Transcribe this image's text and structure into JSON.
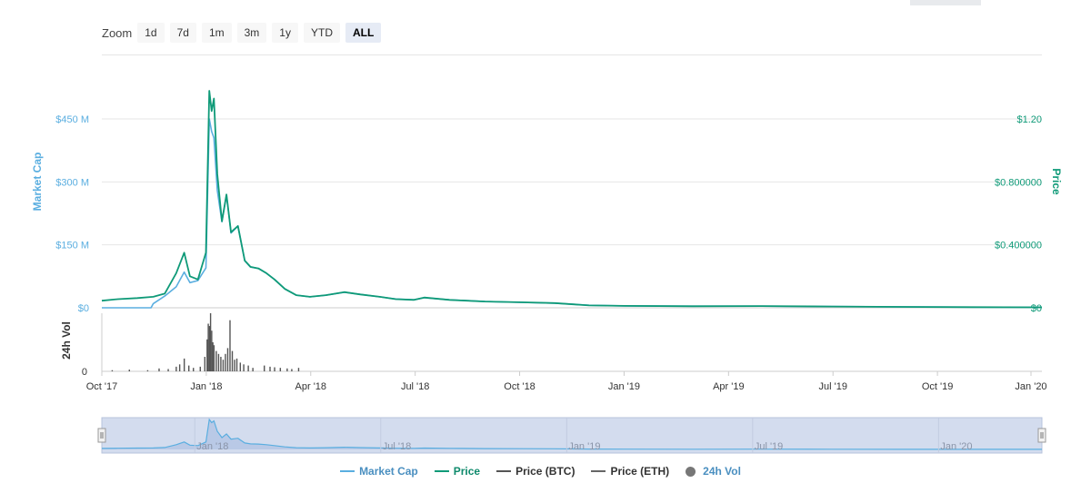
{
  "zoom": {
    "label": "Zoom",
    "buttons": [
      "1d",
      "7d",
      "1m",
      "3m",
      "1y",
      "YTD",
      "ALL"
    ],
    "active": "ALL"
  },
  "colors": {
    "market_cap": "#5aaee0",
    "price": "#0f9a78",
    "price_btc": "#555555",
    "price_eth": "#666666",
    "volume": "#555555",
    "navigator_fill": "#d3dcee",
    "navigator_line": "#5aaee0"
  },
  "legend": [
    {
      "name": "Market Cap",
      "color": "#5aaee0",
      "kind": "line"
    },
    {
      "name": "Price",
      "color": "#0f9a78",
      "kind": "line"
    },
    {
      "name": "Price (BTC)",
      "color": "#555555",
      "kind": "line"
    },
    {
      "name": "Price (ETH)",
      "color": "#666666",
      "kind": "line"
    },
    {
      "name": "24h Vol",
      "color": "#777777",
      "kind": "dot"
    }
  ],
  "chart_data": {
    "type": "line",
    "title": "",
    "x_ticks": [
      "Oct '17",
      "Jan '18",
      "Apr '18",
      "Jul '18",
      "Oct '18",
      "Jan '19",
      "Apr '19",
      "Jul '19",
      "Oct '19",
      "Jan '20"
    ],
    "x_range": [
      "2017-10-01",
      "2020-01-01"
    ],
    "left_axis": {
      "label": "Market Cap",
      "ticks": [
        "$0",
        "$150 M",
        "$300 M",
        "$450 M"
      ],
      "range": [
        0,
        450
      ]
    },
    "right_axis": {
      "label": "Price",
      "ticks": [
        "$0",
        "$0.400000",
        "$0.800000",
        "$1.20"
      ],
      "range": [
        0,
        1.2
      ]
    },
    "volume_axis": {
      "label": "24h Vol",
      "ticks": [
        "0"
      ]
    },
    "navigator_ticks": [
      "Jan '18",
      "Jul '18",
      "Jan '19",
      "Jul '19",
      "Jan '20"
    ],
    "series": [
      {
        "name": "Price",
        "unit": "USD",
        "points": [
          [
            "2017-10-01",
            0.045
          ],
          [
            "2017-10-15",
            0.055
          ],
          [
            "2017-11-01",
            0.062
          ],
          [
            "2017-11-15",
            0.07
          ],
          [
            "2017-11-25",
            0.09
          ],
          [
            "2017-12-05",
            0.22
          ],
          [
            "2017-12-12",
            0.35
          ],
          [
            "2017-12-17",
            0.2
          ],
          [
            "2017-12-24",
            0.18
          ],
          [
            "2017-12-31",
            0.35
          ],
          [
            "2018-01-03",
            1.4
          ],
          [
            "2018-01-05",
            1.25
          ],
          [
            "2018-01-07",
            1.33
          ],
          [
            "2018-01-10",
            0.85
          ],
          [
            "2018-01-14",
            0.55
          ],
          [
            "2018-01-18",
            0.72
          ],
          [
            "2018-01-22",
            0.48
          ],
          [
            "2018-01-28",
            0.52
          ],
          [
            "2018-02-03",
            0.3
          ],
          [
            "2018-02-08",
            0.26
          ],
          [
            "2018-02-15",
            0.25
          ],
          [
            "2018-02-22",
            0.22
          ],
          [
            "2018-03-01",
            0.18
          ],
          [
            "2018-03-10",
            0.12
          ],
          [
            "2018-03-20",
            0.08
          ],
          [
            "2018-04-01",
            0.07
          ],
          [
            "2018-04-15",
            0.08
          ],
          [
            "2018-05-01",
            0.1
          ],
          [
            "2018-05-15",
            0.085
          ],
          [
            "2018-06-01",
            0.07
          ],
          [
            "2018-06-15",
            0.055
          ],
          [
            "2018-07-01",
            0.05
          ],
          [
            "2018-07-10",
            0.065
          ],
          [
            "2018-08-01",
            0.05
          ],
          [
            "2018-09-01",
            0.04
          ],
          [
            "2018-10-01",
            0.035
          ],
          [
            "2018-11-01",
            0.03
          ],
          [
            "2018-12-01",
            0.015
          ],
          [
            "2019-01-01",
            0.012
          ],
          [
            "2019-03-01",
            0.01
          ],
          [
            "2019-05-01",
            0.011
          ],
          [
            "2019-07-01",
            0.008
          ],
          [
            "2019-09-01",
            0.006
          ],
          [
            "2019-11-01",
            0.004
          ],
          [
            "2020-01-01",
            0.003
          ]
        ]
      },
      {
        "name": "Market Cap",
        "unit": "USD millions",
        "points": [
          [
            "2017-10-01",
            0
          ],
          [
            "2017-11-13",
            0
          ],
          [
            "2017-11-15",
            10
          ],
          [
            "2017-11-25",
            28
          ],
          [
            "2017-12-05",
            50
          ],
          [
            "2017-12-12",
            85
          ],
          [
            "2017-12-17",
            60
          ],
          [
            "2017-12-24",
            65
          ],
          [
            "2017-12-31",
            95
          ],
          [
            "2018-01-03",
            450
          ],
          [
            "2018-01-05",
            420
          ],
          [
            "2018-01-07",
            405
          ],
          [
            "2018-01-10",
            280
          ],
          [
            "2018-01-14",
            205
          ],
          [
            "2018-01-18",
            268
          ],
          [
            "2018-01-22",
            178
          ],
          [
            "2018-01-28",
            195
          ],
          [
            "2018-02-03",
            112
          ],
          [
            "2018-02-08",
            97
          ],
          [
            "2018-02-15",
            94
          ],
          [
            "2018-02-22",
            82
          ],
          [
            "2018-03-01",
            68
          ],
          [
            "2018-03-10",
            45
          ],
          [
            "2018-03-20",
            30
          ],
          [
            "2018-04-01",
            26
          ],
          [
            "2018-04-15",
            30
          ],
          [
            "2018-05-01",
            37
          ],
          [
            "2018-05-15",
            32
          ],
          [
            "2018-06-01",
            26
          ],
          [
            "2018-06-15",
            21
          ],
          [
            "2018-07-01",
            19
          ],
          [
            "2018-07-10",
            24
          ],
          [
            "2018-08-01",
            19
          ],
          [
            "2018-09-01",
            15
          ],
          [
            "2018-10-01",
            13
          ],
          [
            "2018-11-01",
            11
          ],
          [
            "2018-12-01",
            6
          ],
          [
            "2019-01-01",
            4.5
          ],
          [
            "2019-03-01",
            3.8
          ],
          [
            "2019-05-01",
            4
          ],
          [
            "2019-07-01",
            3
          ],
          [
            "2019-09-01",
            2.2
          ],
          [
            "2019-11-01",
            1.5
          ],
          [
            "2020-01-01",
            1.1
          ]
        ]
      },
      {
        "name": "24h Vol",
        "unit": "relative",
        "points": [
          [
            "2017-10-10",
            0.02
          ],
          [
            "2017-10-25",
            0.03
          ],
          [
            "2017-11-10",
            0.02
          ],
          [
            "2017-11-20",
            0.05
          ],
          [
            "2017-11-28",
            0.04
          ],
          [
            "2017-12-05",
            0.08
          ],
          [
            "2017-12-08",
            0.12
          ],
          [
            "2017-12-12",
            0.22
          ],
          [
            "2017-12-16",
            0.1
          ],
          [
            "2017-12-20",
            0.06
          ],
          [
            "2017-12-26",
            0.08
          ],
          [
            "2017-12-30",
            0.25
          ],
          [
            "2018-01-01",
            0.55
          ],
          [
            "2018-01-02",
            0.82
          ],
          [
            "2018-01-03",
            0.78
          ],
          [
            "2018-01-04",
            1.0
          ],
          [
            "2018-01-05",
            0.7
          ],
          [
            "2018-01-06",
            0.5
          ],
          [
            "2018-01-07",
            0.45
          ],
          [
            "2018-01-09",
            0.35
          ],
          [
            "2018-01-11",
            0.3
          ],
          [
            "2018-01-13",
            0.25
          ],
          [
            "2018-01-15",
            0.2
          ],
          [
            "2018-01-17",
            0.3
          ],
          [
            "2018-01-19",
            0.4
          ],
          [
            "2018-01-21",
            0.88
          ],
          [
            "2018-01-23",
            0.35
          ],
          [
            "2018-01-25",
            0.2
          ],
          [
            "2018-01-27",
            0.22
          ],
          [
            "2018-01-30",
            0.15
          ],
          [
            "2018-02-02",
            0.12
          ],
          [
            "2018-02-06",
            0.1
          ],
          [
            "2018-02-10",
            0.06
          ],
          [
            "2018-02-20",
            0.1
          ],
          [
            "2018-02-25",
            0.08
          ],
          [
            "2018-03-01",
            0.07
          ],
          [
            "2018-03-06",
            0.06
          ],
          [
            "2018-03-12",
            0.05
          ],
          [
            "2018-03-16",
            0.04
          ],
          [
            "2018-03-22",
            0.06
          ]
        ]
      }
    ]
  }
}
